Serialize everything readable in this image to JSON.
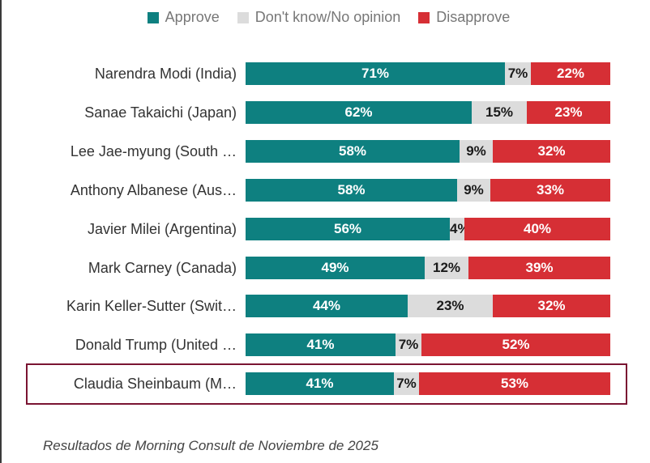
{
  "chart_data": {
    "type": "bar",
    "orientation": "horizontal",
    "stacked": true,
    "title": "",
    "xlabel": "",
    "ylabel": "",
    "legend_position": "top-center",
    "grid": false,
    "categories": [
      "Narendra Modi (India)",
      "Sanae Takaichi (Japan)",
      "Lee Jae-myung (South …",
      "Anthony Albanese (Aus…",
      "Javier Milei (Argentina)",
      "Mark Carney (Canada)",
      "Karin Keller-Sutter (Swit…",
      "Donald Trump (United …",
      "Claudia Sheinbaum (M…"
    ],
    "series": [
      {
        "name": "Approve",
        "color": "#0e8080",
        "values": [
          71,
          62,
          58,
          58,
          56,
          49,
          44,
          41,
          41
        ]
      },
      {
        "name": "Don't know/No opinion",
        "color": "#dcdcdc",
        "values": [
          7,
          15,
          9,
          9,
          4,
          12,
          23,
          7,
          7
        ]
      },
      {
        "name": "Disapprove",
        "color": "#d62f35",
        "values": [
          22,
          23,
          32,
          33,
          40,
          39,
          32,
          52,
          53
        ]
      }
    ],
    "value_suffix": "%",
    "highlighted_category": "Claudia Sheinbaum (M…",
    "highlight_color": "#7a1432"
  },
  "footnote": "Resultados de Morning Consult de Noviembre de 2025"
}
